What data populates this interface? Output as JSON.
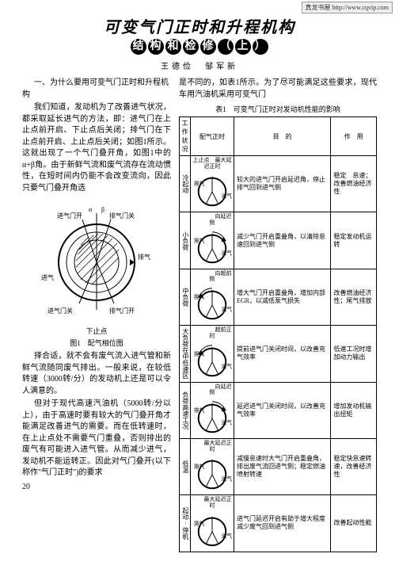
{
  "urlbar": "真龙书屋 http://www.cqvip.com",
  "title_main": "可变气门正时和升程机构",
  "subtitle_chars": [
    "结",
    "构",
    "和",
    "检",
    "修",
    "（",
    "上",
    "）"
  ],
  "authors": "王德俭　邹军新",
  "section1_head": "一、为什么要用可变气门正时和升程机构",
  "left_paras": [
    "我们知道，发动机为了改善进气状况，都采取延长进气的方法，即：进气门在上止点前开启、下止点后关闭；排气门在下止点前开启、上止点后关闭；如图1所示。这就出现了一个气门叠开角，如图1中的α+β角。由于新鲜气流和废气流存在流动惯性，在短时间内仍能不会改变流向，因此只要气门叠开角选"
  ],
  "left_paras_after": [
    "择合适，就不会有废气流入进气管和新鲜气流随同废气排出。一般来说，在较低转速（3000转/分）的发动机上还是可以令人满意的。",
    "但对于现代高速汽油机（5000转/分以上），由于高速时要有较大的气门叠开角才能满足改善进气的需要。而在低转速时，在上止点处不需要气门重叠，否则排出的废气有可能进入进气管。从而减少进气，发动机不能运转正。因此对气门叠开(以下称作\"气门正时\")的要求"
  ],
  "bridge": "是不同的，如表1所示。为了尽可能满足这些要求，现代车用汽油机采用可变气门",
  "fig1_caption_line1": "下止点",
  "fig1_caption_line2": "图1　配气相位图",
  "fig1_labels": {
    "intake_open": "进气门开",
    "exhaust_close": "排气门关",
    "intake": "进气",
    "exhaust": "排气",
    "intake_close": "进气门关",
    "exhaust_open": "排气门开",
    "tdc": "上止点",
    "alpha": "α",
    "beta": "β"
  },
  "table_caption": "表1　可变气门正时对发动机性能的影响",
  "table_headers": [
    "工作状况",
    "配气正时",
    "目　的",
    "作　用"
  ],
  "rows": [
    {
      "label": "冷起动",
      "top": "上止点　最大延迟正时",
      "arc": "none",
      "purpose": "较大的进气门开启延迟角，停止排气回到进气侧",
      "effect": "稳定　怠速；改善燃油经济性"
    },
    {
      "label": "小负荷",
      "top": "　　　　向延迟侧",
      "arc": "right",
      "purpose": "减少气门开启重叠角，以清除怠速回到进气侧",
      "effect": "稳定发动机运转"
    },
    {
      "label": "中负荷",
      "top": "　　　　向超前侧",
      "arc": "left",
      "purpose": "增大气门开启重叠角，增加内部EGR，以减低泵气损失",
      "effect": "改善燃油经济性；尾气排放"
    },
    {
      "label": "大负荷在中低速区",
      "top": "　　　　超前正时",
      "arc": "left",
      "purpose": "提前进气门关闭时间，以改善充气效率",
      "effect": "低速工况时增加动力输出"
    },
    {
      "label": "负荷高速工况",
      "top": "　　　　向延迟侧",
      "arc": "right",
      "purpose": "延迟进气门关闭时间，以改善充气效率",
      "effect": "增加发动机输出扭矩"
    },
    {
      "label": "低温",
      "top": "　　最大延迟正时",
      "arc": "none",
      "purpose": "减慢怠速时大气门开启重叠角，排出废气流回进气侧；稳定燃油喷射转速",
      "effect": "稳定快怠速转速，改善经济性"
    },
    {
      "label": "起动·停机",
      "top": "　　最大延迟正时",
      "arc": "none",
      "purpose": "进气门延迟开启有助于增大程度减少废气回到进气侧",
      "effect": "改善起动性能"
    }
  ],
  "page_number": "20",
  "bot_labels": {
    "intake": "进气",
    "exhaust": "排气"
  },
  "colors": {
    "text": "#000000",
    "bg": "#ffffff",
    "stroke": "#000000"
  }
}
